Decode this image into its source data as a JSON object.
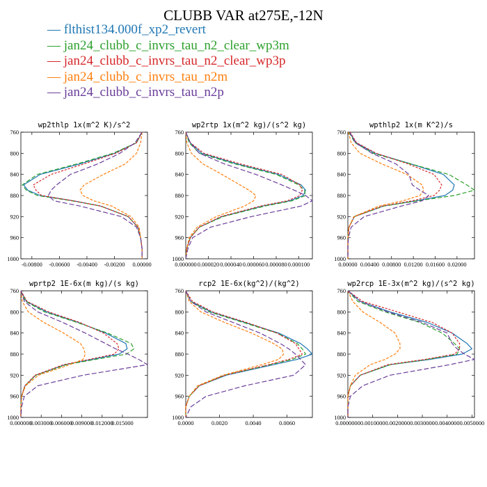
{
  "title": "CLUBB VAR at275E,-12N",
  "legend": [
    {
      "dash": "—",
      "label": "flthist134.000f_xp2_revert",
      "color": "#1f77b4"
    },
    {
      "dash": "—",
      "label": "jan24_clubb_c_invrs_tau_n2_clear_wp3m",
      "color": "#2ca02c"
    },
    {
      "dash": "—",
      "label": "jan24_clubb_c_invrs_tau_n2_clear_wp3p",
      "color": "#d62728"
    },
    {
      "dash": "—",
      "label": "jan24_clubb_c_invrs_tau_n2m",
      "color": "#ff7f0e"
    },
    {
      "dash": "—",
      "label": "jan24_clubb_c_invrs_tau_n2p",
      "color": "#6a3d9a"
    }
  ],
  "chart_data": [
    {
      "type": "line",
      "title": "wp2thlp  1x(m^2 K)/s^2",
      "xlim": [
        -0.0088,
        0.0004
      ],
      "ylim": [
        760,
        1000
      ],
      "xticks": [
        -0.008,
        -0.006,
        -0.004,
        -0.002,
        0
      ],
      "xticklabels": [
        "-0.00800",
        "-0.00600",
        "-0.00400",
        "-0.00200",
        "0.00000"
      ],
      "yticks": [
        760,
        800,
        840,
        880,
        920,
        960,
        1000
      ],
      "y": [
        760,
        780,
        800,
        820,
        840,
        860,
        870,
        880,
        890,
        900,
        920,
        940,
        960,
        980,
        1000
      ],
      "series": [
        {
          "name": "flthist134.000f_xp2_revert",
          "color": "#1f77b4",
          "values": [
            0.0,
            -0.0004,
            -0.002,
            -0.0045,
            -0.0074,
            -0.0086,
            -0.0083,
            -0.0074,
            -0.005,
            -0.003,
            -0.001,
            -0.0003,
            -0.0001,
            0.0,
            0.0
          ]
        },
        {
          "name": "jan24_clubb_c_invrs_tau_n2_clear_wp3m",
          "color": "#2ca02c",
          "values": [
            0.0,
            -0.0004,
            -0.0021,
            -0.0047,
            -0.0076,
            -0.0087,
            -0.0084,
            -0.0076,
            -0.0051,
            -0.003,
            -0.001,
            -0.0003,
            -0.0001,
            0.0,
            0.0
          ]
        },
        {
          "name": "jan24_clubb_c_invrs_tau_n2_clear_wp3p",
          "color": "#d62728",
          "values": [
            0.0,
            -0.0004,
            -0.0019,
            -0.0042,
            -0.0066,
            -0.0079,
            -0.0077,
            -0.0073,
            -0.005,
            -0.003,
            -0.001,
            -0.0003,
            -0.0001,
            0.0,
            0.0
          ]
        },
        {
          "name": "jan24_clubb_c_invrs_tau_n2m",
          "color": "#ff7f0e",
          "values": [
            0.0,
            -0.0001,
            -0.0004,
            -0.0012,
            -0.0028,
            -0.0042,
            -0.0045,
            -0.0043,
            -0.0035,
            -0.0022,
            -0.0008,
            -0.0002,
            -0.0001,
            0.0,
            0.0
          ]
        },
        {
          "name": "jan24_clubb_c_invrs_tau_n2p",
          "color": "#6a3d9a",
          "values": [
            0.0,
            -0.0005,
            -0.0016,
            -0.0032,
            -0.0052,
            -0.0062,
            -0.0066,
            -0.0068,
            -0.0064,
            -0.0045,
            -0.0015,
            -0.0004,
            -0.0001,
            0.0,
            0.0
          ]
        }
      ]
    },
    {
      "type": "line",
      "title": "wp2rtp  1x(m^2 kg)/(s^2 kg)",
      "xlim": [
        0,
        0.000112
      ],
      "ylim": [
        760,
        1000
      ],
      "xticks": [
        0,
        2e-05,
        4e-05,
        6e-05,
        8e-05,
        0.0001
      ],
      "xticklabels": [
        "0.000000",
        "0.000020",
        "0.000040",
        "0.000060",
        "0.000080",
        "0.000100"
      ],
      "yticks": [
        760,
        800,
        840,
        880,
        920,
        960,
        1000
      ],
      "y": [
        760,
        780,
        800,
        820,
        840,
        860,
        870,
        880,
        890,
        900,
        920,
        940,
        960,
        980,
        1000
      ],
      "series": [
        {
          "name": "flthist134.000f_xp2_revert",
          "color": "#1f77b4",
          "values": [
            0.0,
            4e-06,
            1.4e-05,
            4.5e-05,
            8.2e-05,
            0.000102,
            0.000106,
            0.000104,
            9.2e-05,
            6.8e-05,
            3.2e-05,
            1.2e-05,
            4e-06,
            1e-06,
            0.0
          ]
        },
        {
          "name": "jan24_clubb_c_invrs_tau_n2_clear_wp3m",
          "color": "#2ca02c",
          "values": [
            0.0,
            3e-06,
            1.2e-05,
            4.3e-05,
            8e-05,
            0.0001,
            0.000105,
            0.000106,
            9.4e-05,
            7e-05,
            3.3e-05,
            1.2e-05,
            4e-06,
            1e-06,
            0.0
          ]
        },
        {
          "name": "jan24_clubb_c_invrs_tau_n2_clear_wp3p",
          "color": "#d62728",
          "values": [
            0.0,
            4e-06,
            1.6e-05,
            4.8e-05,
            8.5e-05,
            0.000101,
            0.000103,
            0.000101,
            9e-05,
            6.6e-05,
            3.1e-05,
            1.2e-05,
            4e-06,
            1e-06,
            0.0
          ]
        },
        {
          "name": "jan24_clubb_c_invrs_tau_n2m",
          "color": "#ff7f0e",
          "values": [
            0.0,
            1e-06,
            5e-06,
            1.5e-05,
            3.2e-05,
            4.8e-05,
            5.6e-05,
            6.2e-05,
            6e-05,
            5.2e-05,
            2.7e-05,
            1e-05,
            3e-06,
            1e-06,
            0.0
          ]
        },
        {
          "name": "jan24_clubb_c_invrs_tau_n2p",
          "color": "#6a3d9a",
          "values": [
            0.0,
            4e-06,
            1.2e-05,
            3.4e-05,
            6.2e-05,
            8.5e-05,
            9.6e-05,
            0.000106,
            0.000112,
            0.000102,
            5.8e-05,
            2.2e-05,
            6e-06,
            2e-06,
            0.0
          ]
        }
      ]
    },
    {
      "type": "line",
      "title": "wpthlp2  1x(m K^2)/s",
      "xlim": [
        0,
        0.0232
      ],
      "ylim": [
        760,
        1000
      ],
      "xticks": [
        0,
        0.004,
        0.008,
        0.012,
        0.016,
        0.02
      ],
      "xticklabels": [
        "0.00000",
        "0.00400",
        "0.00800",
        "0.01200",
        "0.01600",
        "0.02000"
      ],
      "yticks": [
        760,
        800,
        840,
        880,
        920,
        960,
        1000
      ],
      "y": [
        760,
        780,
        800,
        820,
        840,
        860,
        870,
        880,
        890,
        900,
        920,
        940,
        960,
        980,
        1000
      ],
      "series": [
        {
          "name": "flthist134.000f_xp2_revert",
          "color": "#1f77b4",
          "values": [
            0.0003,
            0.0015,
            0.005,
            0.0115,
            0.0175,
            0.0195,
            0.0192,
            0.0178,
            0.0125,
            0.0065,
            0.0012,
            0.0002,
            0.0,
            0.0,
            0.0
          ]
        },
        {
          "name": "jan24_clubb_c_invrs_tau_n2_clear_wp3m",
          "color": "#2ca02c",
          "values": [
            0.0002,
            0.0013,
            0.0046,
            0.0115,
            0.0185,
            0.0218,
            0.0232,
            0.0195,
            0.0128,
            0.0066,
            0.0012,
            0.0002,
            0.0,
            0.0,
            0.0
          ]
        },
        {
          "name": "jan24_clubb_c_invrs_tau_n2_clear_wp3p",
          "color": "#d62728",
          "values": [
            0.0004,
            0.0016,
            0.0052,
            0.011,
            0.0158,
            0.0172,
            0.0168,
            0.0158,
            0.0118,
            0.0063,
            0.0012,
            0.0002,
            0.0,
            0.0,
            0.0
          ]
        },
        {
          "name": "jan24_clubb_c_invrs_tau_n2m",
          "color": "#ff7f0e",
          "values": [
            0.0001,
            0.0006,
            0.0022,
            0.0062,
            0.0108,
            0.0136,
            0.0139,
            0.0132,
            0.0101,
            0.0057,
            0.0011,
            0.0002,
            0.0,
            0.0,
            0.0
          ]
        },
        {
          "name": "jan24_clubb_c_invrs_tau_n2p",
          "color": "#6a3d9a",
          "values": [
            0.0003,
            0.0014,
            0.0044,
            0.0088,
            0.0112,
            0.0118,
            0.0132,
            0.0148,
            0.0136,
            0.0098,
            0.003,
            0.0006,
            0.0001,
            0.0,
            0.0
          ]
        }
      ]
    },
    {
      "type": "line",
      "title": "wprtp2  1E-6x(m kg)/(s kg)",
      "xlim": [
        0,
        0.0187
      ],
      "ylim": [
        760,
        1000
      ],
      "xticks": [
        0,
        0.003,
        0.006,
        0.009,
        0.012,
        0.015
      ],
      "xticklabels": [
        "0.000000",
        "0.003000",
        "0.006000",
        "0.009000",
        "0.012000",
        "0.015000"
      ],
      "yticks": [
        760,
        800,
        840,
        880,
        920,
        960,
        1000
      ],
      "y": [
        760,
        780,
        800,
        820,
        840,
        860,
        870,
        880,
        890,
        900,
        920,
        940,
        960,
        980,
        1000
      ],
      "series": [
        {
          "name": "flthist134.000f_xp2_revert",
          "color": "#1f77b4",
          "values": [
            0.0,
            0.0008,
            0.0038,
            0.0085,
            0.0125,
            0.0155,
            0.0157,
            0.0145,
            0.0105,
            0.0065,
            0.0022,
            0.0006,
            0.0001,
            0.0,
            0.0
          ]
        },
        {
          "name": "jan24_clubb_c_invrs_tau_n2_clear_wp3m",
          "color": "#2ca02c",
          "values": [
            0.0,
            0.0007,
            0.0035,
            0.0083,
            0.0128,
            0.0163,
            0.0167,
            0.0156,
            0.011,
            0.0067,
            0.0022,
            0.0006,
            0.0001,
            0.0,
            0.0
          ]
        },
        {
          "name": "jan24_clubb_c_invrs_tau_n2_clear_wp3p",
          "color": "#d62728",
          "values": [
            0.0,
            0.0009,
            0.0041,
            0.0087,
            0.0122,
            0.0142,
            0.0145,
            0.0138,
            0.0101,
            0.0063,
            0.0021,
            0.0006,
            0.0001,
            0.0,
            0.0
          ]
        },
        {
          "name": "jan24_clubb_c_invrs_tau_n2m",
          "color": "#ff7f0e",
          "values": [
            0.0,
            0.0002,
            0.0011,
            0.0034,
            0.0063,
            0.0088,
            0.0093,
            0.0095,
            0.0092,
            0.0072,
            0.0026,
            0.0007,
            0.0001,
            0.0,
            0.0
          ]
        },
        {
          "name": "jan24_clubb_c_invrs_tau_n2p",
          "color": "#6a3d9a",
          "values": [
            0.0,
            0.0005,
            0.0025,
            0.0062,
            0.0095,
            0.0125,
            0.014,
            0.0158,
            0.0174,
            0.0187,
            0.0092,
            0.0025,
            0.0005,
            0.0001,
            0.0
          ]
        }
      ]
    },
    {
      "type": "line",
      "title": "rcp2  1E-6x(kg^2)/(kg^2)",
      "xlim": [
        0,
        0.0075
      ],
      "ylim": [
        760,
        1000
      ],
      "xticks": [
        0,
        0.002,
        0.004,
        0.006
      ],
      "xticklabels": [
        "0.0000",
        "0.0020",
        "0.0040",
        "0.0060"
      ],
      "yticks": [
        760,
        800,
        840,
        880,
        920,
        960,
        1000
      ],
      "y": [
        760,
        780,
        800,
        820,
        840,
        860,
        870,
        880,
        890,
        900,
        920,
        940,
        960,
        980,
        1000
      ],
      "series": [
        {
          "name": "flthist134.000f_xp2_revert",
          "color": "#1f77b4",
          "values": [
            0.0,
            0.0003,
            0.0015,
            0.0035,
            0.0055,
            0.0068,
            0.0072,
            0.0075,
            0.0066,
            0.0052,
            0.0024,
            0.0008,
            0.0002,
            0.0,
            0.0
          ]
        },
        {
          "name": "jan24_clubb_c_invrs_tau_n2_clear_wp3m",
          "color": "#2ca02c",
          "values": [
            0.0,
            0.0003,
            0.0014,
            0.0034,
            0.0054,
            0.0066,
            0.0069,
            0.0071,
            0.0063,
            0.005,
            0.0023,
            0.0008,
            0.0002,
            0.0,
            0.0
          ]
        },
        {
          "name": "jan24_clubb_c_invrs_tau_n2_clear_wp3p",
          "color": "#d62728",
          "values": [
            0.0,
            0.0004,
            0.0016,
            0.0036,
            0.0054,
            0.0065,
            0.0067,
            0.0069,
            0.0061,
            0.0049,
            0.0023,
            0.0008,
            0.0002,
            0.0,
            0.0
          ]
        },
        {
          "name": "jan24_clubb_c_invrs_tau_n2m",
          "color": "#ff7f0e",
          "values": [
            0.0,
            0.0002,
            0.0009,
            0.0023,
            0.0039,
            0.0052,
            0.0057,
            0.0058,
            0.0055,
            0.0045,
            0.0022,
            0.0007,
            0.0002,
            0.0,
            0.0
          ]
        },
        {
          "name": "jan24_clubb_c_invrs_tau_n2p",
          "color": "#6a3d9a",
          "values": [
            0.0,
            0.0003,
            0.0012,
            0.0028,
            0.0044,
            0.0056,
            0.0061,
            0.0065,
            0.0068,
            0.0071,
            0.0064,
            0.0035,
            0.0012,
            0.0003,
            0.0
          ]
        }
      ]
    },
    {
      "type": "line",
      "title": "wp2rcp  1E-3x(m^2 kg)/(s^2 kg)",
      "xlim": [
        0,
        0.0051
      ],
      "ylim": [
        760,
        1000
      ],
      "xticks": [
        0,
        0.001,
        0.002,
        0.003,
        0.004,
        0.005
      ],
      "xticklabels": [
        "0.0000000",
        "0.0010000",
        "0.0020000",
        "0.0030000",
        "0.0040000",
        "0.0050000"
      ],
      "yticks": [
        760,
        800,
        840,
        880,
        920,
        960,
        1000
      ],
      "y": [
        760,
        780,
        800,
        820,
        840,
        860,
        870,
        880,
        890,
        900,
        920,
        940,
        960,
        980,
        1000
      ],
      "series": [
        {
          "name": "flthist134.000f_xp2_revert",
          "color": "#1f77b4",
          "values": [
            0.0,
            0.0005,
            0.0017,
            0.0032,
            0.0042,
            0.0048,
            0.005,
            0.0046,
            0.0033,
            0.0017,
            0.0005,
            0.0001,
            0.0,
            0.0,
            0.0
          ]
        },
        {
          "name": "jan24_clubb_c_invrs_tau_n2_clear_wp3m",
          "color": "#2ca02c",
          "values": [
            0.0,
            0.0004,
            0.0015,
            0.0029,
            0.0038,
            0.0043,
            0.0045,
            0.0044,
            0.0032,
            0.0017,
            0.0005,
            0.0001,
            0.0,
            0.0,
            0.0
          ]
        },
        {
          "name": "jan24_clubb_c_invrs_tau_n2_clear_wp3p",
          "color": "#d62728",
          "values": [
            0.0,
            0.0006,
            0.002,
            0.0034,
            0.0042,
            0.0045,
            0.0045,
            0.0043,
            0.0031,
            0.0016,
            0.0005,
            0.0001,
            0.0,
            0.0,
            0.0
          ]
        },
        {
          "name": "jan24_clubb_c_invrs_tau_n2m",
          "color": "#ff7f0e",
          "values": [
            0.0,
            0.0002,
            0.0006,
            0.0013,
            0.0019,
            0.0021,
            0.0021,
            0.0019,
            0.0015,
            0.0009,
            0.0003,
            0.0001,
            0.0,
            0.0,
            0.0
          ]
        },
        {
          "name": "jan24_clubb_c_invrs_tau_n2p",
          "color": "#6a3d9a",
          "values": [
            0.0,
            0.0005,
            0.0016,
            0.003,
            0.004,
            0.0042,
            0.0044,
            0.0047,
            0.0051,
            0.0041,
            0.0017,
            0.0006,
            0.0001,
            0.0,
            0.0
          ]
        }
      ]
    }
  ]
}
